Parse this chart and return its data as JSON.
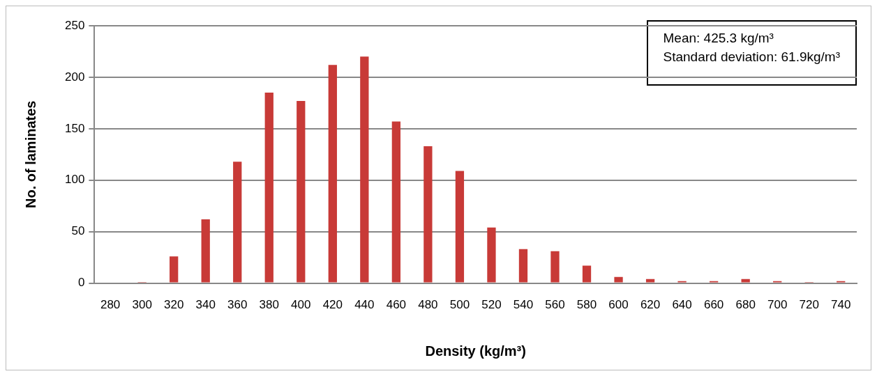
{
  "chart_data": {
    "type": "bar",
    "xlabel": "Density (kg/m³)",
    "ylabel": "No. of laminates",
    "categories": [
      "280",
      "300",
      "320",
      "340",
      "360",
      "380",
      "400",
      "420",
      "440",
      "460",
      "480",
      "500",
      "520",
      "540",
      "560",
      "580",
      "600",
      "620",
      "640",
      "660",
      "680",
      "700",
      "720",
      "740"
    ],
    "values": [
      0,
      1,
      26,
      62,
      118,
      185,
      177,
      212,
      220,
      157,
      133,
      109,
      54,
      33,
      31,
      17,
      6,
      4,
      2,
      2,
      4,
      2,
      1,
      2
    ],
    "color": "#c83a37",
    "ylim": [
      0,
      250
    ],
    "yticks": [
      0,
      50,
      100,
      150,
      200,
      250
    ],
    "grid": "y",
    "annotations": [
      "Mean: 425.3 kg/m³",
      "Standard deviation: 61.9kg/m³"
    ]
  }
}
